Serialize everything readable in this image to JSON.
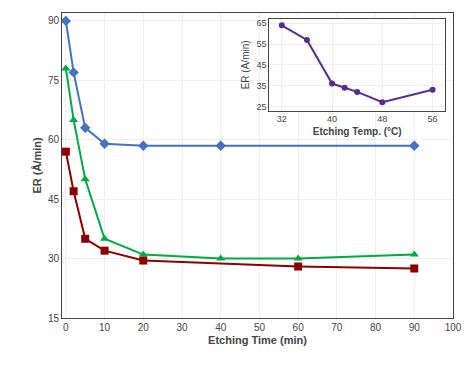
{
  "chart_data": [
    {
      "type": "line",
      "xlabel": "Etching Time (min)",
      "ylabel": "ER (Å/min)",
      "xlim": [
        -1,
        100
      ],
      "ylim": [
        15,
        92
      ],
      "xticks": [
        0,
        10,
        20,
        30,
        40,
        50,
        60,
        70,
        80,
        90,
        100
      ],
      "yticks": [
        15,
        30,
        45,
        60,
        75,
        90
      ],
      "grid": true,
      "series": [
        {
          "color": "#4472C4",
          "marker": "diamond",
          "x": [
            0,
            2,
            5,
            10,
            20,
            40,
            90
          ],
          "values": [
            90,
            77,
            63,
            59,
            58.5,
            58.5,
            58.5
          ]
        },
        {
          "color": "#00AA44",
          "marker": "triangle-up",
          "x": [
            0,
            2,
            5,
            10,
            20,
            40,
            60,
            90
          ],
          "values": [
            78,
            65,
            50,
            35,
            31,
            30,
            30,
            31
          ]
        },
        {
          "color": "#8B0000",
          "marker": "square",
          "x": [
            0,
            2,
            5,
            10,
            20,
            60,
            90
          ],
          "values": [
            57,
            47,
            35,
            32,
            29.5,
            28,
            27.5
          ]
        }
      ]
    },
    {
      "type": "line",
      "xlabel": "Etching Temp. (°C)",
      "ylabel": "ER (A/min)",
      "xlim": [
        30,
        58
      ],
      "ylim": [
        23,
        67
      ],
      "xticks": [
        32,
        40,
        48,
        56
      ],
      "yticks": [
        25,
        35,
        45,
        55,
        65
      ],
      "grid": true,
      "series": [
        {
          "color": "#5B2C8D",
          "marker": "circle",
          "x": [
            32,
            36,
            40,
            42,
            44,
            48,
            56
          ],
          "values": [
            64,
            57,
            36,
            34,
            32,
            27,
            33
          ]
        }
      ]
    }
  ]
}
